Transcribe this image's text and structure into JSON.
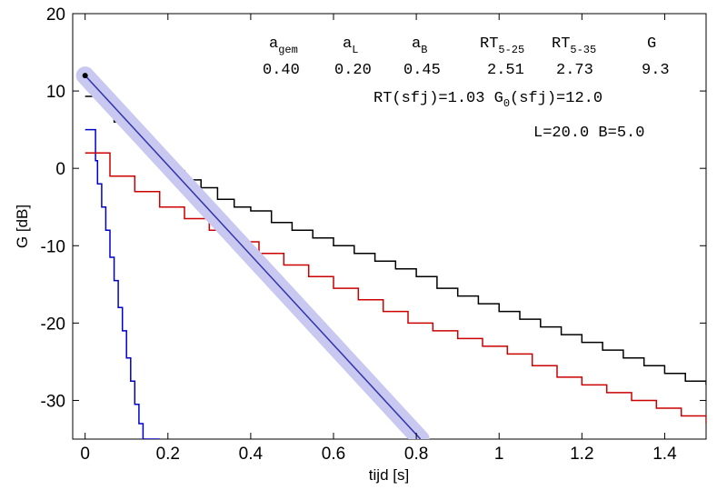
{
  "chart_data": {
    "type": "line",
    "title": "",
    "xlabel": "tijd  [s]",
    "ylabel": "G  [dB]",
    "xlim": [
      -0.03,
      1.5
    ],
    "ylim": [
      -35,
      20
    ],
    "xticks": [
      0,
      0.2,
      0.4,
      0.6,
      0.8,
      1,
      1.2,
      1.4
    ],
    "xtick_labels": [
      "0",
      "0.2",
      "0.4",
      "0.6",
      "0.8",
      "1",
      "1.2",
      "1.4"
    ],
    "yticks": [
      -30,
      -20,
      -10,
      0,
      10,
      20
    ],
    "ytick_labels": [
      "-30",
      "-20",
      "-10",
      "0",
      "10",
      "20"
    ],
    "grid": false,
    "series": [
      {
        "color": "#0000cc",
        "style": "step",
        "x": [
          0,
          0.02,
          0.025,
          0.03,
          0.04,
          0.05,
          0.06,
          0.07,
          0.08,
          0.09,
          0.1,
          0.11,
          0.12,
          0.13,
          0.14,
          0.15,
          0.17,
          0.18
        ],
        "y": [
          5,
          5,
          1,
          -2,
          -5,
          -8,
          -11.5,
          -14.5,
          -18,
          -21,
          -24.5,
          -27.5,
          -30.5,
          -33,
          -35,
          -35,
          -35,
          -35
        ]
      },
      {
        "color": "#cc0000",
        "style": "step",
        "x": [
          0,
          0.06,
          0.12,
          0.18,
          0.24,
          0.3,
          0.36,
          0.42,
          0.48,
          0.54,
          0.6,
          0.66,
          0.72,
          0.78,
          0.84,
          0.9,
          0.96,
          1.02,
          1.08,
          1.14,
          1.2,
          1.26,
          1.32,
          1.38,
          1.44,
          1.5
        ],
        "y": [
          2,
          -1,
          -3,
          -5,
          -6.5,
          -8,
          -9.5,
          -11,
          -12.5,
          -14,
          -15.5,
          -17,
          -18.5,
          -20,
          -21,
          -22,
          -23,
          -24,
          -25.5,
          -27,
          -28,
          -29,
          -30,
          -31,
          -32,
          -33
        ]
      },
      {
        "color": "#000000",
        "style": "step",
        "x": [
          0,
          0.05,
          0.07,
          0.1,
          0.12,
          0.14,
          0.16,
          0.18,
          0.2,
          0.24,
          0.28,
          0.32,
          0.36,
          0.4,
          0.45,
          0.5,
          0.55,
          0.6,
          0.65,
          0.7,
          0.75,
          0.8,
          0.85,
          0.9,
          0.95,
          1.0,
          1.05,
          1.1,
          1.15,
          1.2,
          1.25,
          1.3,
          1.35,
          1.4,
          1.45,
          1.5
        ],
        "y": [
          9.3,
          8,
          6,
          5,
          4,
          2.5,
          1.5,
          0.5,
          -0.3,
          -1.5,
          -2.5,
          -4,
          -5,
          -5.5,
          -7,
          -8,
          -9,
          -10,
          -11,
          -12,
          -13,
          -14,
          -15.5,
          -16.5,
          -17.5,
          -18.5,
          -19.5,
          -20.5,
          -21.5,
          -22.5,
          -23.5,
          -24.5,
          -25.5,
          -26.5,
          -27.5,
          -28
        ]
      },
      {
        "color": "#3333aa",
        "highlight_color": "#c8c8f0",
        "style": "linear",
        "x": [
          0,
          0.81
        ],
        "y": [
          12,
          -35
        ],
        "start_marker": true
      }
    ],
    "annotations": {
      "headers": [
        {
          "main": "a",
          "sub": "gem"
        },
        {
          "main": "a",
          "sub": "L"
        },
        {
          "main": "a",
          "sub": "B"
        },
        {
          "main": "RT",
          "sub": "5-25"
        },
        {
          "main": "RT",
          "sub": "5-35"
        },
        {
          "main": "G",
          "sub": ""
        }
      ],
      "values": [
        "0.40",
        "0.20",
        "0.45",
        "2.51",
        "2.73",
        "9.3"
      ],
      "rt_line_prefix": "RT(sfj)=1.03  G",
      "rt_line_sub": "0",
      "rt_line_suffix": "(sfj)=12.0",
      "dims_line": "L=20.0 B=5.0"
    }
  }
}
